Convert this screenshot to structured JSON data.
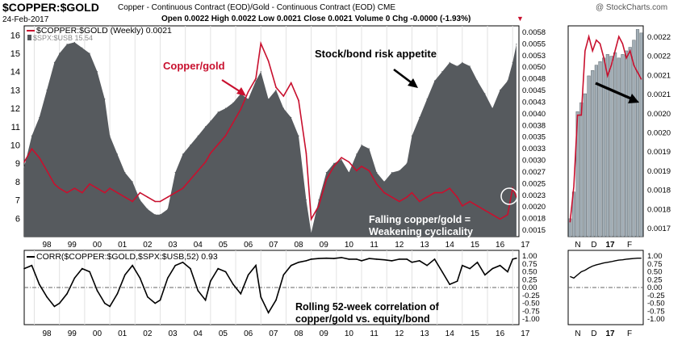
{
  "header": {
    "symbol": "$COPPER:$GOLD",
    "description": "Copper - Continuous Contract (EOD)/Gold - Continuous Contract (EOD)  CME",
    "watermark": "@ StockCharts.com",
    "date": "24-Feb-2017",
    "quote": "Open 0.0022  High 0.0022  Low 0.0021  Close 0.0021  Volume 0  Chg -0.0000 (-1.93%)",
    "change_marker": "▼"
  },
  "colors": {
    "copper_gold": "#c8102e",
    "spx_usb_area": "#565a5e",
    "spx_usb_bars": "#a2aeb6",
    "correlation": "#000000",
    "annotation_red": "#c8102e"
  },
  "chart_data": [
    {
      "type": "line",
      "panel": "main",
      "x_tick_labels": [
        "98",
        "99",
        "00",
        "01",
        "02",
        "03",
        "04",
        "05",
        "06",
        "07",
        "08",
        "09",
        "10",
        "11",
        "12",
        "13",
        "14",
        "15",
        "16",
        "17"
      ],
      "x": [
        1997.6,
        1997.9,
        1998.2,
        1998.5,
        1998.8,
        1999.0,
        1999.3,
        1999.6,
        1999.9,
        2000.2,
        2000.5,
        2000.8,
        2001.0,
        2001.3,
        2001.6,
        2001.9,
        2002.2,
        2002.5,
        2002.8,
        2003.0,
        2003.3,
        2003.6,
        2003.9,
        2004.2,
        2004.5,
        2004.8,
        2005.0,
        2005.3,
        2005.6,
        2005.9,
        2006.2,
        2006.5,
        2006.8,
        2007.0,
        2007.3,
        2007.6,
        2007.9,
        2008.2,
        2008.5,
        2008.8,
        2009.0,
        2009.3,
        2009.6,
        2009.9,
        2010.2,
        2010.5,
        2010.8,
        2011.0,
        2011.3,
        2011.6,
        2011.9,
        2012.2,
        2012.5,
        2012.8,
        2013.0,
        2013.3,
        2013.6,
        2013.9,
        2014.2,
        2014.5,
        2014.8,
        2015.0,
        2015.3,
        2015.6,
        2015.9,
        2016.2,
        2016.5,
        2016.8,
        2017.0,
        2017.15
      ],
      "series": [
        {
          "name": "$COPPER:$GOLD (Weekly) 0.0021",
          "axis": "right",
          "values": [
            0.0029,
            0.0032,
            0.003,
            0.0027,
            0.0024,
            0.0023,
            0.0022,
            0.0023,
            0.0022,
            0.0024,
            0.0023,
            0.0022,
            0.0023,
            0.0022,
            0.0021,
            0.002,
            0.0022,
            0.0021,
            0.002,
            0.002,
            0.0021,
            0.0022,
            0.0023,
            0.0025,
            0.0027,
            0.0029,
            0.0031,
            0.0033,
            0.0035,
            0.0038,
            0.0041,
            0.0045,
            0.0048,
            0.0056,
            0.0052,
            0.0046,
            0.0044,
            0.0047,
            0.0043,
            0.0031,
            0.0016,
            0.0019,
            0.0025,
            0.0028,
            0.003,
            0.0029,
            0.0027,
            0.0028,
            0.0027,
            0.0024,
            0.0022,
            0.0021,
            0.002,
            0.0021,
            0.0022,
            0.002,
            0.0021,
            0.0022,
            0.0022,
            0.0023,
            0.0021,
            0.0019,
            0.002,
            0.0019,
            0.0018,
            0.0017,
            0.0016,
            0.0017,
            0.0023,
            0.0021
          ]
        },
        {
          "name": "$SPX:$USB 15.54",
          "axis": "left",
          "values": [
            8.8,
            10.5,
            11.5,
            13.0,
            14.5,
            15.0,
            15.5,
            15.6,
            15.3,
            15.0,
            14.0,
            12.5,
            10.5,
            9.5,
            8.5,
            8.0,
            7.0,
            6.5,
            6.2,
            6.2,
            6.5,
            8.5,
            9.5,
            10.0,
            10.5,
            11.0,
            11.3,
            11.8,
            12.0,
            12.3,
            12.8,
            12.5,
            13.5,
            14.0,
            12.5,
            13.0,
            12.0,
            11.5,
            10.5,
            7.0,
            5.2,
            7.0,
            8.5,
            9.0,
            9.2,
            8.5,
            9.5,
            10.0,
            9.8,
            8.5,
            8.0,
            8.5,
            8.6,
            9.0,
            10.5,
            11.5,
            12.5,
            13.5,
            14.0,
            14.5,
            14.3,
            14.5,
            14.3,
            13.5,
            12.8,
            12.0,
            13.0,
            13.5,
            14.5,
            15.5
          ]
        }
      ],
      "left_axis": {
        "ylim": [
          5,
          16.5
        ],
        "ticks": [
          6,
          7,
          8,
          9,
          10,
          11,
          12,
          13,
          14,
          15,
          16
        ]
      },
      "right_axis": {
        "ticks": [
          "0.0015",
          "0.0018",
          "0.0020",
          "0.0023",
          "0.0025",
          "0.0027",
          "0.0030",
          "0.0033",
          "0.0035",
          "0.0038",
          "0.0040",
          "0.0043",
          "0.0045",
          "0.0048",
          "0.0050",
          "0.0053",
          "0.0055",
          "0.0058"
        ]
      },
      "annotations": {
        "copper_gold_label": "Copper/gold",
        "risk_appetite_label": "Stock/bond risk appetite",
        "falling_line1": "Falling copper/gold =",
        "falling_line2": "Weakening cyclicality"
      }
    },
    {
      "type": "line",
      "panel": "correlation",
      "legend": "CORR($COPPER:$GOLD,$SPX:$USB,52) 0.93",
      "x": [
        1997.6,
        1997.9,
        1998.2,
        1998.5,
        1998.8,
        1999.0,
        1999.3,
        1999.6,
        1999.9,
        2000.2,
        2000.5,
        2000.8,
        2001.0,
        2001.3,
        2001.6,
        2001.9,
        2002.2,
        2002.5,
        2002.8,
        2003.0,
        2003.3,
        2003.6,
        2003.9,
        2004.2,
        2004.5,
        2004.8,
        2005.0,
        2005.3,
        2005.6,
        2005.9,
        2006.2,
        2006.5,
        2006.8,
        2007.0,
        2007.3,
        2007.6,
        2007.9,
        2008.2,
        2008.5,
        2008.8,
        2009.0,
        2009.3,
        2009.6,
        2009.9,
        2010.2,
        2010.5,
        2010.8,
        2011.0,
        2011.3,
        2011.6,
        2011.9,
        2012.2,
        2012.5,
        2012.8,
        2013.0,
        2013.3,
        2013.6,
        2013.9,
        2014.2,
        2014.5,
        2014.8,
        2015.0,
        2015.3,
        2015.6,
        2015.9,
        2016.2,
        2016.5,
        2016.8,
        2017.0,
        2017.15
      ],
      "values": [
        0.6,
        0.7,
        0.1,
        -0.3,
        -0.6,
        -0.5,
        -0.2,
        0.3,
        0.6,
        0.5,
        -0.1,
        -0.5,
        -0.6,
        -0.2,
        0.4,
        0.7,
        0.3,
        -0.3,
        -0.5,
        -0.4,
        0.3,
        0.7,
        0.8,
        0.6,
        -0.1,
        -0.4,
        0.2,
        0.6,
        0.5,
        0.1,
        -0.2,
        0.4,
        0.7,
        -0.3,
        -0.8,
        -0.4,
        0.4,
        0.7,
        0.8,
        0.85,
        0.9,
        0.92,
        0.93,
        0.92,
        0.95,
        0.9,
        0.9,
        0.85,
        0.92,
        0.9,
        0.88,
        0.85,
        0.9,
        0.9,
        0.8,
        0.85,
        0.7,
        0.9,
        0.5,
        0.1,
        0.2,
        0.7,
        0.6,
        0.8,
        0.4,
        0.6,
        0.7,
        0.5,
        0.9,
        0.93
      ],
      "ylim": [
        -1.0,
        1.0
      ],
      "right_ticks": [
        "1.00",
        "0.75",
        "0.50",
        "0.25",
        "0.00",
        "-0.25",
        "-0.50",
        "-0.75",
        "-1.00"
      ],
      "annotation_line1": "Rolling 52-week correlation of",
      "annotation_line2": "copper/gold vs. equity/bond"
    },
    {
      "type": "bar",
      "panel": "inset",
      "x_tick_labels": [
        "N",
        "D",
        "17",
        "F"
      ],
      "right_ticks": [
        "0.0022",
        "0.0022",
        "0.0021",
        "0.0021",
        "0.0020",
        "0.0020",
        "0.0019",
        "0.0019",
        "0.0018",
        "0.0018",
        "0.0017"
      ],
      "spx_usb_bars": [
        6.0,
        7.5,
        12.0,
        12.5,
        13.0,
        14.0,
        14.3,
        14.6,
        14.8,
        15.0,
        15.2,
        15.1,
        15.3,
        15.0,
        15.2,
        15.4,
        15.6,
        16.0,
        16.6,
        16.4
      ],
      "copper_gold_line": [
        0.0017,
        0.0018,
        0.002,
        0.002,
        0.00218,
        0.00222,
        0.00218,
        0.00221,
        0.0022,
        0.00216,
        0.00211,
        0.00214,
        0.00218,
        0.00222,
        0.0022,
        0.00216,
        0.00218,
        0.00214,
        0.00212,
        0.0021
      ],
      "corr_line": [
        0.35,
        0.3,
        0.4,
        0.5,
        0.55,
        0.62,
        0.68,
        0.72,
        0.75,
        0.78,
        0.8,
        0.82,
        0.85,
        0.87,
        0.88,
        0.9,
        0.91,
        0.92,
        0.93,
        0.93
      ]
    }
  ]
}
